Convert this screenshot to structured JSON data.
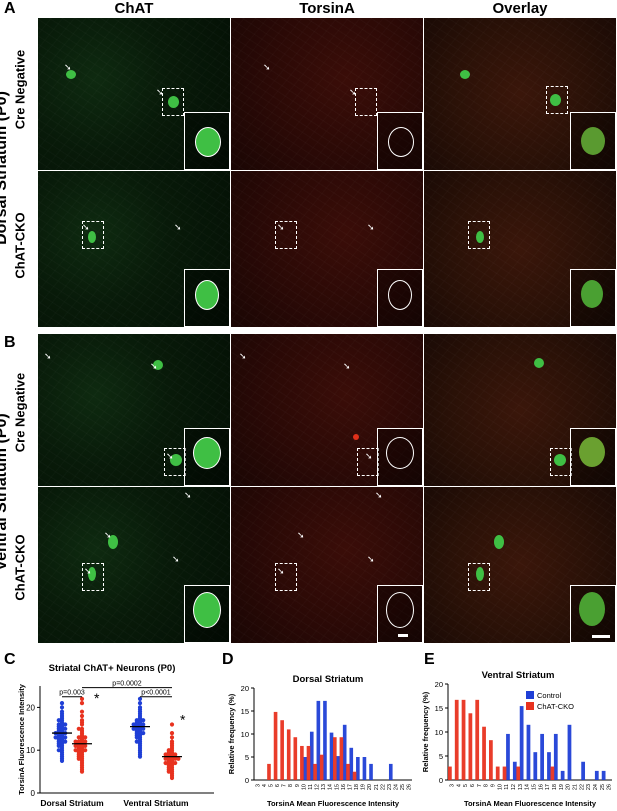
{
  "panel_letters": {
    "A": "A",
    "B": "B",
    "C": "C",
    "D": "D",
    "E": "E"
  },
  "columns": [
    "ChAT",
    "TorsinA",
    "Overlay"
  ],
  "region_labels": {
    "dorsal": "Dorsal Striatum (P0)",
    "ventral": "Ventral Striatum (P0)"
  },
  "row_labels": {
    "cre": "Cre Negative",
    "cko": "ChAT-CKO"
  },
  "colors": {
    "control": "#1f3fd6",
    "cko": "#e8321f",
    "green": "#2ec23a",
    "red": "#c23a22"
  },
  "chart_data": [
    {
      "type": "scatter",
      "title": "Striatal ChAT+ Neurons (P0)",
      "ylabel": "TorsinA Fluorescence Intensity",
      "ylim": [
        0,
        25
      ],
      "yticks": [
        "0",
        "10",
        "20"
      ],
      "categories": [
        "Dorsal Striatum",
        "Ventral Striatum"
      ],
      "series": [
        {
          "name": "Dorsal Control",
          "group": "Dorsal Striatum",
          "color": "#1f3fd6",
          "mean": 14.0,
          "values": [
            21,
            20,
            19,
            18.5,
            18,
            17.5,
            17,
            17,
            16.5,
            16,
            16,
            15.5,
            15.5,
            15,
            15,
            14.5,
            14.5,
            14,
            14,
            14,
            13.5,
            13.5,
            13,
            13,
            13,
            12.5,
            12.5,
            12,
            12,
            11.5,
            11.5,
            11,
            11,
            10.5,
            10,
            10,
            9.5,
            9,
            8.5,
            8,
            7.5,
            14,
            15,
            13,
            16,
            12
          ]
        },
        {
          "name": "Dorsal ChAT-CKO",
          "group": "Dorsal Striatum",
          "color": "#e8321f",
          "mean": 11.5,
          "values": [
            22,
            21,
            19,
            18,
            17,
            16.5,
            16,
            15,
            15,
            14.5,
            14,
            13.5,
            13,
            13,
            12.5,
            12,
            12,
            12,
            11.5,
            11.5,
            11,
            11,
            11,
            10.5,
            10.5,
            10,
            10,
            10,
            9.5,
            9.5,
            9,
            9,
            8.5,
            8.5,
            8,
            8,
            7.5,
            7,
            6.5,
            6,
            5.5,
            5,
            11,
            12,
            10,
            13
          ]
        },
        {
          "name": "Ventral Control",
          "group": "Ventral Striatum",
          "color": "#1f3fd6",
          "mean": 15.5,
          "values": [
            22,
            21,
            20,
            19.5,
            19,
            18.5,
            18,
            17.5,
            17,
            17,
            16.5,
            16.5,
            16,
            16,
            15.5,
            15.5,
            15,
            15,
            15,
            14.5,
            14.5,
            14,
            14,
            13.5,
            13.5,
            13,
            13,
            12.5,
            12,
            12,
            11.5,
            11,
            10.5,
            10,
            9.5,
            9,
            8.5,
            16,
            15,
            17,
            14,
            16
          ]
        },
        {
          "name": "Ventral ChAT-CKO",
          "group": "Ventral Striatum",
          "color": "#e8321f",
          "mean": 8.5,
          "values": [
            16,
            14,
            13,
            12,
            11.5,
            11,
            10.5,
            10,
            10,
            9.5,
            9.5,
            9,
            9,
            9,
            8.5,
            8.5,
            8.5,
            8,
            8,
            8,
            7.5,
            7.5,
            7,
            7,
            7,
            6.5,
            6.5,
            6,
            6,
            5.5,
            5.5,
            5,
            5,
            4.5,
            4,
            3.5,
            8,
            9,
            7,
            8
          ]
        }
      ],
      "annotations": {
        "p_dorsal": "p=0.003",
        "p_ventral": "p<0.0001",
        "p_between": "p=0.0002",
        "star": "*"
      }
    },
    {
      "type": "bar",
      "title": "Dorsal Striatum",
      "ylabel": "Relative frequency (%)",
      "xlabel": "TorsinA Mean Fluorescence Intensity",
      "ylim": [
        0,
        20
      ],
      "yticks": [
        "0",
        "5",
        "10",
        "15",
        "20"
      ],
      "categories": [
        "3",
        "4",
        "5",
        "6",
        "7",
        "8",
        "9",
        "10",
        "11",
        "12",
        "13",
        "14",
        "15",
        "16",
        "17",
        "18",
        "19",
        "20",
        "21",
        "22",
        "23",
        "24",
        "25",
        "26"
      ],
      "series": [
        {
          "name": "Control",
          "color": "#1f3fd6",
          "values": [
            0,
            0,
            0,
            0,
            0,
            0,
            0,
            5,
            10.5,
            17.2,
            17.2,
            10.3,
            5.2,
            12,
            7,
            5,
            5,
            3.5,
            0,
            0,
            3.5,
            0,
            0,
            0
          ]
        },
        {
          "name": "ChAT-CKO",
          "color": "#e8321f",
          "values": [
            0,
            0,
            3.5,
            14.8,
            13,
            11,
            9.3,
            7.4,
            7.4,
            3.5,
            5.5,
            0,
            9.3,
            9.3,
            3.5,
            1.8,
            0,
            0,
            0,
            0,
            0,
            0,
            0,
            0
          ]
        }
      ]
    },
    {
      "type": "bar",
      "title": "Ventral Striatum",
      "ylabel": "Relative frequency (%)",
      "xlabel": "TorsinA Mean Fluorescence Intensity",
      "ylim": [
        0,
        20
      ],
      "yticks": [
        "0",
        "5",
        "10",
        "15",
        "20"
      ],
      "legend": [
        "Control",
        "ChAT-CKO"
      ],
      "categories": [
        "3",
        "4",
        "5",
        "6",
        "7",
        "8",
        "9",
        "10",
        "11",
        "12",
        "13",
        "14",
        "15",
        "16",
        "17",
        "18",
        "19",
        "20",
        "21",
        "22",
        "23",
        "24",
        "25",
        "26"
      ],
      "series": [
        {
          "name": "Control",
          "color": "#1f3fd6",
          "values": [
            0,
            0,
            0,
            0,
            0,
            0,
            0,
            0,
            9.6,
            3.8,
            15.4,
            11.5,
            5.8,
            9.6,
            5.8,
            9.6,
            1.9,
            11.5,
            0,
            3.8,
            0,
            1.9,
            1.9,
            0
          ]
        },
        {
          "name": "ChAT-CKO",
          "color": "#e8321f",
          "values": [
            2.8,
            16.7,
            16.7,
            13.9,
            16.7,
            11.1,
            8.3,
            2.8,
            2.8,
            0,
            2.8,
            0,
            0,
            0,
            0,
            2.8,
            0,
            0,
            0,
            0,
            0,
            0,
            0,
            0
          ]
        }
      ]
    }
  ]
}
